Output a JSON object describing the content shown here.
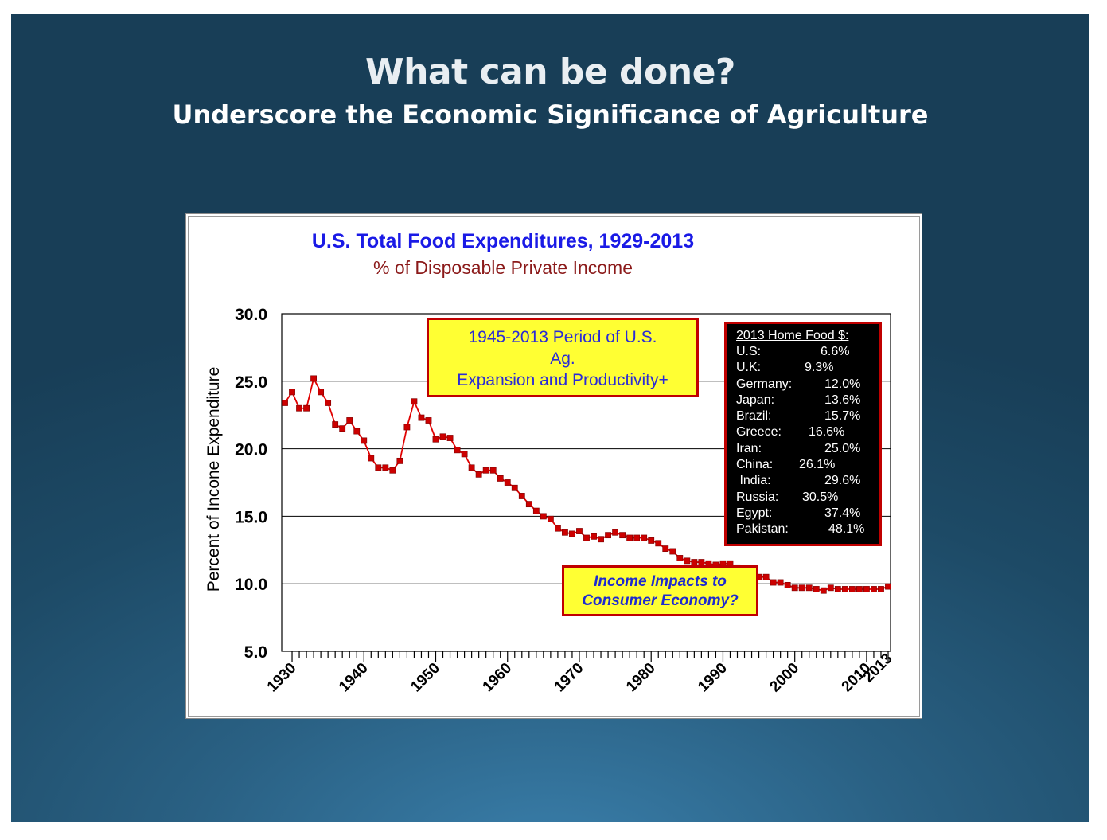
{
  "slide": {
    "title": "What can be done?",
    "subtitle": "Underscore the Economic Significance of  Agriculture"
  },
  "chart_data": {
    "type": "line",
    "title": "U.S. Total Food Expenditures, 1929-2013",
    "subtitle": "% of Disposable Private Income",
    "ylabel": "Percent of Incone Expenditure",
    "xlabel": "",
    "ylim": [
      5.0,
      30.0
    ],
    "xlim": [
      1929,
      2013
    ],
    "yticks": [
      "5.0",
      "10.0",
      "15.0",
      "20.0",
      "25.0",
      "30.0"
    ],
    "xticks": [
      "1930",
      "1940",
      "1950",
      "1960",
      "1970",
      "1980",
      "1990",
      "2000",
      "2010",
      "2013"
    ],
    "grid": "horizontal",
    "colors": {
      "line": "#e00000",
      "marker": "#cc0000",
      "title": "#1a1ae6",
      "subtitle": "#8b1a1a"
    },
    "series": [
      {
        "x": [
          1929,
          1930,
          1931,
          1932,
          1933,
          1934,
          1935,
          1936,
          1937,
          1938,
          1939,
          1940,
          1941,
          1942,
          1943,
          1944,
          1945,
          1946,
          1947,
          1948,
          1949,
          1950,
          1951,
          1952,
          1953,
          1954,
          1955,
          1956,
          1957,
          1958,
          1959,
          1960,
          1961,
          1962,
          1963,
          1964,
          1965,
          1966,
          1967,
          1968,
          1969,
          1970,
          1971,
          1972,
          1973,
          1974,
          1975,
          1976,
          1977,
          1978,
          1979,
          1980,
          1981,
          1982,
          1983,
          1984,
          1985,
          1986,
          1987,
          1988,
          1989,
          1990,
          1991,
          1992,
          1993,
          1994,
          1995,
          1996,
          1997,
          1998,
          1999,
          2000,
          2001,
          2002,
          2003,
          2004,
          2005,
          2006,
          2007,
          2008,
          2009,
          2010,
          2011,
          2012,
          2013
        ],
        "values": [
          23.4,
          24.2,
          23.0,
          23.0,
          25.2,
          24.2,
          23.4,
          21.8,
          21.5,
          22.1,
          21.3,
          20.6,
          19.3,
          18.6,
          18.6,
          18.4,
          19.1,
          21.6,
          23.5,
          22.3,
          22.1,
          20.7,
          20.9,
          20.8,
          19.9,
          19.6,
          18.6,
          18.1,
          18.4,
          18.4,
          17.8,
          17.5,
          17.1,
          16.5,
          15.9,
          15.4,
          15.0,
          14.8,
          14.1,
          13.8,
          13.7,
          13.9,
          13.4,
          13.5,
          13.3,
          13.6,
          13.8,
          13.6,
          13.4,
          13.4,
          13.4,
          13.2,
          13.0,
          12.6,
          12.4,
          11.9,
          11.7,
          11.6,
          11.6,
          11.5,
          11.4,
          11.5,
          11.5,
          11.2,
          11.0,
          10.8,
          10.5,
          10.5,
          10.1,
          10.1,
          9.9,
          9.7,
          9.7,
          9.7,
          9.6,
          9.5,
          9.7,
          9.6,
          9.6,
          9.6,
          9.6,
          9.6,
          9.6,
          9.6,
          9.8
        ]
      }
    ],
    "annotations": {
      "period": [
        "1945-2013 Period of U.S.",
        "Ag.",
        "Expansion and Productivity+"
      ],
      "income": [
        "Income Impacts to",
        "Consumer Economy?"
      ],
      "home_food": {
        "title": "2013 Home Food $:",
        "rows": [
          {
            "country": "U.S:",
            "value": "6.6%"
          },
          {
            "country": "U.K:",
            "value": "9.3%"
          },
          {
            "country": "Germany:",
            "value": "12.0%"
          },
          {
            "country": "Japan:",
            "value": "13.6%"
          },
          {
            "country": "Brazil:",
            "value": "15.7%"
          },
          {
            "country": "Greece:",
            "value": "16.6%"
          },
          {
            "country": "Iran:",
            "value": "25.0%"
          },
          {
            "country": "China:",
            "value": "26.1%"
          },
          {
            "country": " India:",
            "value": "29.6%"
          },
          {
            "country": "Russia:",
            "value": "30.5%"
          },
          {
            "country": "Egypt:",
            "value": "37.4%"
          },
          {
            "country": "Pakistan:",
            "value": "48.1%"
          }
        ]
      }
    }
  }
}
